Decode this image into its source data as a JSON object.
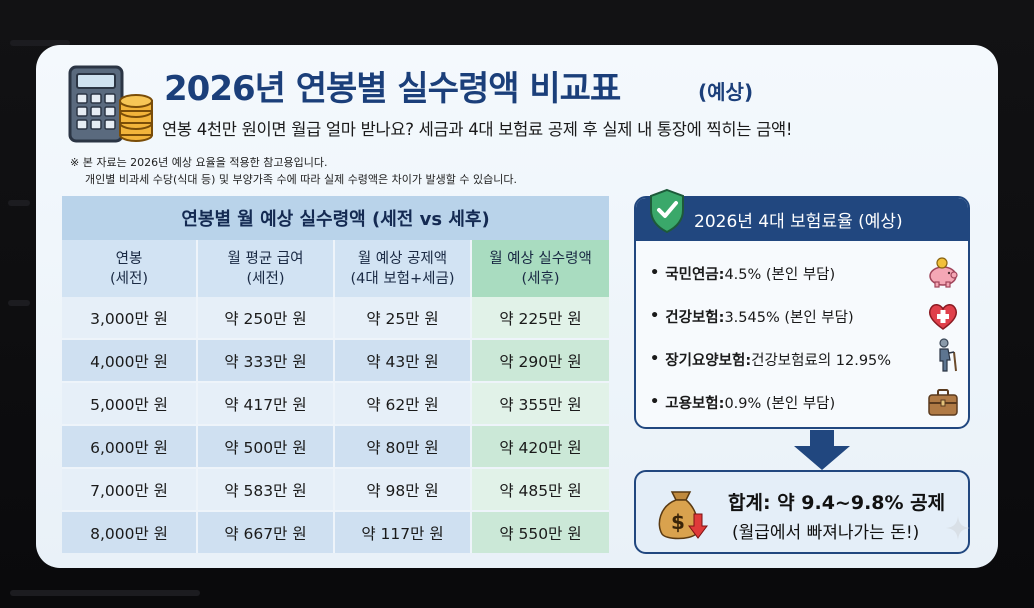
{
  "header": {
    "title": "2026년 연봉별 실수령액 비교표",
    "title_suffix": "(예상)",
    "subtitle": "연봉 4천만 원이면 월급 얼마 받나요? 세금과 4대 보험료 공제 후 실제 내 통장에 찍히는 금액!"
  },
  "note": {
    "line1": "※ 본 자료는 2026년 예상 요율을 적용한 참고용입니다.",
    "line2": "개인별 비과세 수당(식대 등) 및 부양가족 수에 따라 실제 수령액은 차이가 발생할 수 있습니다."
  },
  "table": {
    "title": "연봉별 월 예상 실수령액 (세전 vs 세후)",
    "columns": [
      {
        "line1": "연봉",
        "line2": "(세전)"
      },
      {
        "line1": "월 평균 급여",
        "line2": "(세전)"
      },
      {
        "line1": "월 예상 공제액",
        "line2": "(4대 보험+세금)"
      },
      {
        "line1": "월 예상 실수령액",
        "line2": "(세후)"
      }
    ],
    "rows": [
      [
        "3,000만 원",
        "약 250만 원",
        "약 25만 원",
        "약 225만 원"
      ],
      [
        "4,000만 원",
        "약 333만 원",
        "약 43만 원",
        "약 290만 원"
      ],
      [
        "5,000만 원",
        "약 417만 원",
        "약 62만 원",
        "약 355만 원"
      ],
      [
        "6,000만 원",
        "약 500만 원",
        "약 80만 원",
        "약 420만 원"
      ],
      [
        "7,000만 원",
        "약 583만 원",
        "약 98만 원",
        "약 485만 원"
      ],
      [
        "8,000만 원",
        "약 667만 원",
        "약 117만 원",
        "약 550만 원"
      ]
    ]
  },
  "insurance": {
    "title": "2026년 4대 보험료율 (예상)",
    "items": [
      {
        "bullet": "•",
        "label": "국민연금:",
        "value": " 4.5% (본인 부담)",
        "icon": "piggy-bank-icon"
      },
      {
        "bullet": "•",
        "label": "건강보험:",
        "value": " 3.545% (본인 부담)",
        "icon": "heart-cross-icon"
      },
      {
        "bullet": "•",
        "label": "장기요양보험:",
        "value": " 건강보험료의 12.95%",
        "icon": "elderly-person-icon"
      },
      {
        "bullet": "•",
        "label": "고용보험:",
        "value": " 0.9% (본인 부담)",
        "icon": "briefcase-icon"
      }
    ]
  },
  "total": {
    "main": "합계: 약 9.4~9.8% 공제",
    "sub": "(월급에서 빠져나가는 돈!)"
  },
  "colors": {
    "title": "#1b3f7a",
    "panel_dark": "#21477f",
    "green_col": "#a9dcc0"
  }
}
